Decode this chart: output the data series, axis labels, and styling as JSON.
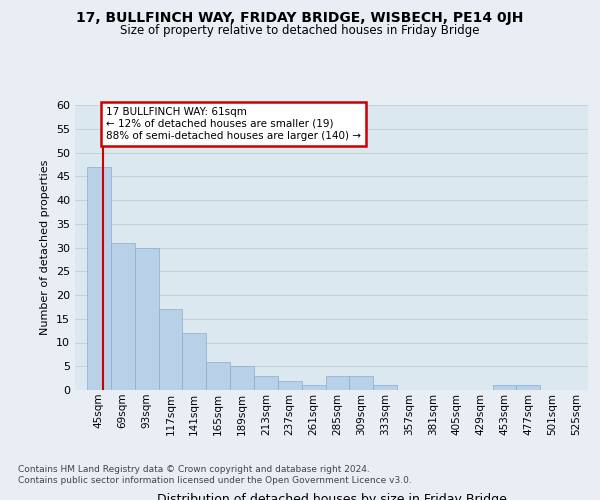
{
  "title1": "17, BULLFINCH WAY, FRIDAY BRIDGE, WISBECH, PE14 0JH",
  "title2": "Size of property relative to detached houses in Friday Bridge",
  "xlabel": "Distribution of detached houses by size in Friday Bridge",
  "ylabel": "Number of detached properties",
  "footnote1": "Contains HM Land Registry data © Crown copyright and database right 2024.",
  "footnote2": "Contains public sector information licensed under the Open Government Licence v3.0.",
  "annotation_title": "17 BULLFINCH WAY: 61sqm",
  "annotation_line1": "← 12% of detached houses are smaller (19)",
  "annotation_line2": "88% of semi-detached houses are larger (140) →",
  "property_size": 61,
  "categories": [
    "45sqm",
    "69sqm",
    "93sqm",
    "117sqm",
    "141sqm",
    "165sqm",
    "189sqm",
    "213sqm",
    "237sqm",
    "261sqm",
    "285sqm",
    "309sqm",
    "333sqm",
    "357sqm",
    "381sqm",
    "405sqm",
    "429sqm",
    "453sqm",
    "477sqm",
    "501sqm",
    "525sqm"
  ],
  "x_starts": [
    45,
    69,
    93,
    117,
    141,
    165,
    189,
    213,
    237,
    261,
    285,
    309,
    333,
    357,
    381,
    405,
    429,
    453,
    477,
    501,
    525
  ],
  "values": [
    47,
    31,
    30,
    17,
    12,
    6,
    5,
    3,
    2,
    1,
    3,
    3,
    1,
    0,
    0,
    0,
    0,
    1,
    1,
    0,
    0
  ],
  "bar_color": "#b8d0e8",
  "bar_edge_color": "#8aaec8",
  "property_line_color": "#cc0000",
  "annotation_box_color": "#cc0000",
  "ylim": [
    0,
    60
  ],
  "yticks": [
    0,
    5,
    10,
    15,
    20,
    25,
    30,
    35,
    40,
    45,
    50,
    55,
    60
  ],
  "background_color": "#e8eef4",
  "plot_bg_color": "#dce8f0"
}
